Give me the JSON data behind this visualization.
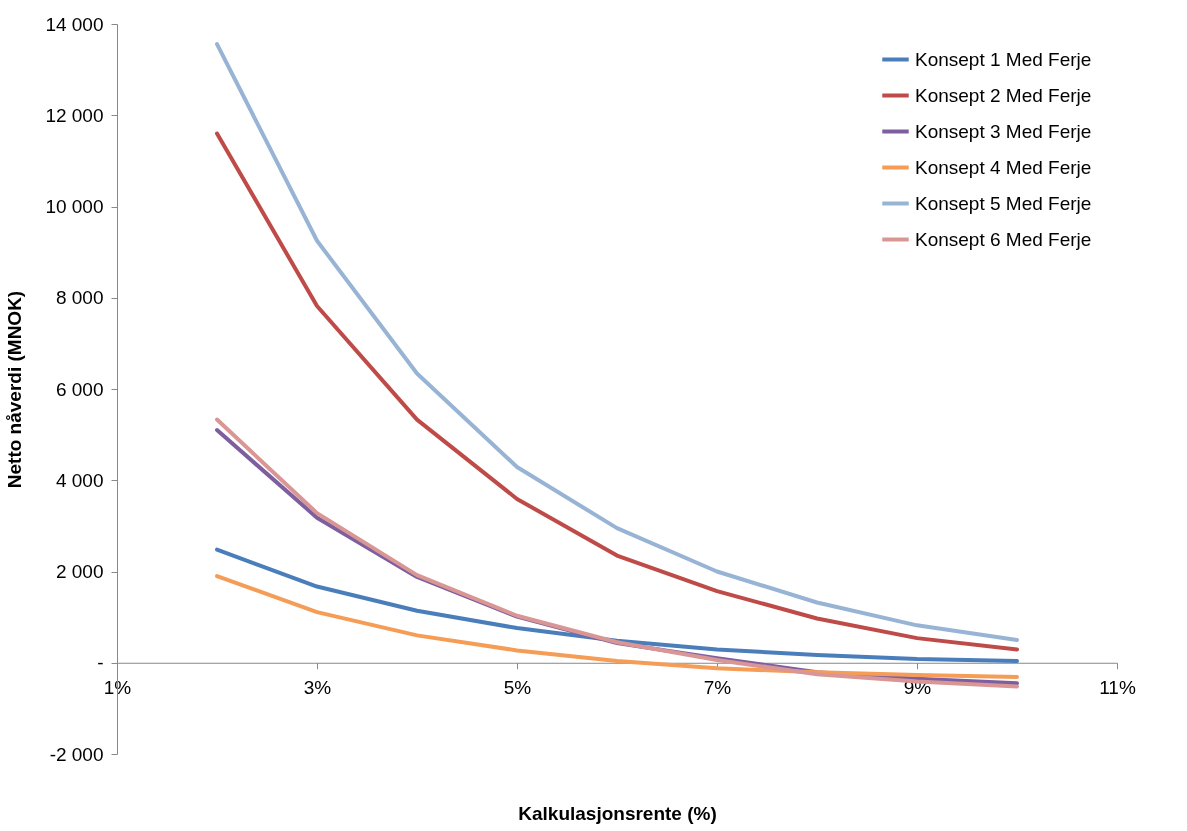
{
  "chart_data": {
    "type": "line",
    "xlabel": "Kalkulasjonsrente (%)",
    "ylabel": "Netto nåverdi (MNOK)",
    "x": [
      2,
      3,
      4,
      5,
      6,
      7,
      8,
      9,
      10
    ],
    "xlim": [
      1,
      11
    ],
    "xticks": [
      {
        "value": 1,
        "label": "1%"
      },
      {
        "value": 3,
        "label": "3%"
      },
      {
        "value": 5,
        "label": "5%"
      },
      {
        "value": 7,
        "label": "7%"
      },
      {
        "value": 9,
        "label": "9%"
      },
      {
        "value": 11,
        "label": "11%"
      }
    ],
    "ylim": [
      -2000,
      14000
    ],
    "yticks": [
      {
        "value": -2000,
        "label": "-2 000"
      },
      {
        "value": 0,
        "label": "-"
      },
      {
        "value": 2000,
        "label": "2 000"
      },
      {
        "value": 4000,
        "label": "4 000"
      },
      {
        "value": 6000,
        "label": "6 000"
      },
      {
        "value": 8000,
        "label": "8 000"
      },
      {
        "value": 10000,
        "label": "10 000"
      },
      {
        "value": 12000,
        "label": "12 000"
      },
      {
        "value": 14000,
        "label": "14 000"
      }
    ],
    "series": [
      {
        "name": "Konsept 1  Med Ferje",
        "color": "#4a7ebb",
        "values": [
          2480,
          1670,
          1140,
          760,
          480,
          290,
          170,
          80,
          40
        ]
      },
      {
        "name": "Konsept 2 Med Ferje",
        "color": "#be4b48",
        "values": [
          11600,
          7820,
          5330,
          3590,
          2350,
          1570,
          970,
          540,
          290
        ]
      },
      {
        "name": "Konsept 3 Med Ferje",
        "color": "#7d5fa0",
        "values": [
          5100,
          3180,
          1880,
          1010,
          430,
          100,
          -210,
          -350,
          -450
        ]
      },
      {
        "name": "Konsept 4 Med Ferje",
        "color": "#f59d56",
        "values": [
          1900,
          1110,
          600,
          270,
          40,
          -120,
          -210,
          -270,
          -310
        ]
      },
      {
        "name": "Konsept 5 Med Ferje",
        "color": "#98b4d4",
        "values": [
          13560,
          9250,
          6340,
          4290,
          2950,
          2000,
          1320,
          820,
          500
        ]
      },
      {
        "name": "Konsept 6 Med Ferje",
        "color": "#d99694",
        "values": [
          5330,
          3280,
          1920,
          1030,
          450,
          60,
          -250,
          -410,
          -520
        ]
      }
    ],
    "legend": "top right",
    "grid": false,
    "marker": "none",
    "line_style": "solid"
  }
}
